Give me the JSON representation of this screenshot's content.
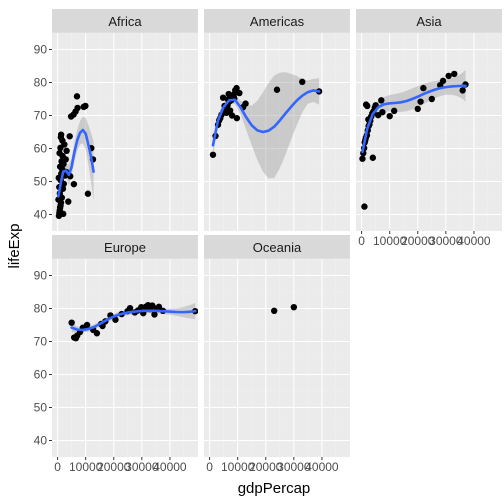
{
  "chart_data": {
    "type": "scatter",
    "xlabel": "gdpPercap",
    "ylabel": "lifeExp",
    "x_ticks": [
      0,
      10000,
      20000,
      30000,
      40000
    ],
    "x_tick_labels": [
      "0",
      "10000",
      "20000",
      "30000",
      "40000"
    ],
    "y_ticks": [
      40,
      50,
      60,
      70,
      80,
      90
    ],
    "y_tick_labels": [
      "40",
      "50",
      "60",
      "70",
      "80",
      "90"
    ],
    "xlim": [
      -2000,
      50000
    ],
    "ylim": [
      35,
      95
    ],
    "grid": true,
    "colors": {
      "panel_bg": "#ebebeb",
      "strip_bg": "#d9d9d9",
      "grid_major": "#ffffff",
      "grid_minor": "#f2f2f2",
      "point": "#000000",
      "smooth_line": "#3366ff",
      "ribbon": "#999999"
    },
    "facets": [
      {
        "name": "Africa",
        "points": [
          [
            470,
            39.6
          ],
          [
            620,
            40.5
          ],
          [
            760,
            41.2
          ],
          [
            900,
            42.1
          ],
          [
            1050,
            42.8
          ],
          [
            1200,
            43.6
          ],
          [
            300,
            44.5
          ],
          [
            1500,
            45.1
          ],
          [
            800,
            46.4
          ],
          [
            1900,
            47.8
          ],
          [
            600,
            48.3
          ],
          [
            2200,
            49.3
          ],
          [
            1100,
            50.4
          ],
          [
            400,
            51.1
          ],
          [
            2600,
            51.8
          ],
          [
            1300,
            52.4
          ],
          [
            3000,
            52.9
          ],
          [
            1600,
            53.8
          ],
          [
            900,
            54.5
          ],
          [
            2100,
            55.3
          ],
          [
            1400,
            56.1
          ],
          [
            2900,
            56.7
          ],
          [
            1800,
            57.7
          ],
          [
            700,
            58.6
          ],
          [
            3200,
            59.3
          ],
          [
            1000,
            60.2
          ],
          [
            2400,
            61.2
          ],
          [
            1700,
            62.4
          ],
          [
            1150,
            63.4
          ],
          [
            1250,
            64.2
          ],
          [
            3500,
            52.5
          ],
          [
            4500,
            51.6
          ],
          [
            5800,
            49.2
          ],
          [
            4300,
            63.7
          ],
          [
            4800,
            69.7
          ],
          [
            5700,
            70.3
          ],
          [
            6400,
            71.2
          ],
          [
            7100,
            72.3
          ],
          [
            6900,
            75.8
          ],
          [
            9300,
            72.6
          ],
          [
            9900,
            72.9
          ],
          [
            10800,
            46.3
          ],
          [
            12600,
            56.7
          ],
          [
            12000,
            60.1
          ],
          [
            2000,
            40.2
          ],
          [
            3800,
            43.9
          ]
        ],
        "smooth": [
          [
            280,
            45.5
          ],
          [
            1000,
            49.0
          ],
          [
            2000,
            53.0
          ],
          [
            3000,
            53.3
          ],
          [
            4000,
            52.0
          ],
          [
            5000,
            54.5
          ],
          [
            6000,
            59.0
          ],
          [
            7000,
            62.5
          ],
          [
            8000,
            64.8
          ],
          [
            9000,
            65.6
          ],
          [
            10000,
            64.5
          ],
          [
            11000,
            61.0
          ],
          [
            12000,
            57.0
          ],
          [
            12800,
            53.0
          ]
        ],
        "ribbon_hw": [
          3.0,
          2.2,
          1.6,
          1.8,
          3.2,
          2.6,
          2.8,
          3.2,
          3.6,
          4.0,
          4.8,
          6.0,
          7.5,
          9.0
        ]
      },
      {
        "name": "Americas",
        "points": [
          [
            1200,
            58.1
          ],
          [
            2100,
            63.8
          ],
          [
            3000,
            67.2
          ],
          [
            3800,
            69.2
          ],
          [
            4200,
            70.2
          ],
          [
            5000,
            71.3
          ],
          [
            5600,
            72.1
          ],
          [
            6000,
            70.8
          ],
          [
            6400,
            73.1
          ],
          [
            7100,
            74.3
          ],
          [
            7800,
            74.7
          ],
          [
            8300,
            75.6
          ],
          [
            8600,
            76.3
          ],
          [
            9100,
            77.6
          ],
          [
            9600,
            78.3
          ],
          [
            10600,
            76.8
          ],
          [
            11900,
            72.5
          ],
          [
            8800,
            75.2
          ],
          [
            8000,
            70.0
          ],
          [
            6600,
            74.8
          ],
          [
            9700,
            69.2
          ],
          [
            12800,
            73.6
          ],
          [
            4800,
            75.4
          ],
          [
            24000,
            77.8
          ],
          [
            33000,
            80.2
          ],
          [
            39000,
            77.3
          ],
          [
            7300,
            71.5
          ],
          [
            5300,
            72.9
          ],
          [
            3400,
            68.5
          ],
          [
            6800,
            76.5
          ]
        ],
        "smooth": [
          [
            1200,
            61.0
          ],
          [
            3000,
            68.5
          ],
          [
            5000,
            72.6
          ],
          [
            7000,
            74.6
          ],
          [
            9000,
            74.8
          ],
          [
            11000,
            72.5
          ],
          [
            13000,
            69.5
          ],
          [
            15000,
            67.0
          ],
          [
            17000,
            65.5
          ],
          [
            19000,
            65.0
          ],
          [
            21000,
            65.4
          ],
          [
            23000,
            66.6
          ],
          [
            25000,
            68.5
          ],
          [
            27000,
            70.6
          ],
          [
            29000,
            72.6
          ],
          [
            31000,
            74.5
          ],
          [
            33000,
            76.0
          ],
          [
            35000,
            77.1
          ],
          [
            37000,
            77.6
          ],
          [
            39000,
            77.3
          ]
        ],
        "ribbon_hw": [
          3.0,
          1.5,
          1.2,
          1.2,
          1.3,
          2.0,
          3.8,
          6.0,
          9.0,
          12.0,
          14.5,
          15.5,
          14.5,
          12.5,
          10.0,
          7.5,
          5.0,
          3.5,
          3.5,
          4.0
        ]
      },
      {
        "name": "Asia",
        "points": [
          [
            1000,
            42.4
          ],
          [
            300,
            56.9
          ],
          [
            600,
            58.6
          ],
          [
            900,
            60.1
          ],
          [
            1100,
            61.8
          ],
          [
            1300,
            62.5
          ],
          [
            1500,
            63.2
          ],
          [
            1900,
            64.0
          ],
          [
            2200,
            65.5
          ],
          [
            2500,
            66.8
          ],
          [
            2800,
            67.3
          ],
          [
            3100,
            68.4
          ],
          [
            3400,
            69.7
          ],
          [
            3800,
            70.6
          ],
          [
            4200,
            71.2
          ],
          [
            4700,
            72.4
          ],
          [
            2000,
            72.9
          ],
          [
            5000,
            73.1
          ],
          [
            5900,
            70.1
          ],
          [
            7400,
            71.0
          ],
          [
            10000,
            69.8
          ],
          [
            11600,
            71.4
          ],
          [
            20000,
            72.0
          ],
          [
            21000,
            74.2
          ],
          [
            22000,
            78.3
          ],
          [
            25000,
            75.0
          ],
          [
            28000,
            79.2
          ],
          [
            29000,
            80.5
          ],
          [
            31000,
            82.0
          ],
          [
            33000,
            82.6
          ],
          [
            36000,
            77.6
          ],
          [
            37000,
            79.4
          ],
          [
            4000,
            57.2
          ],
          [
            1600,
            73.3
          ],
          [
            7000,
            74.6
          ],
          [
            2400,
            68.8
          ]
        ],
        "smooth": [
          [
            300,
            59.0
          ],
          [
            2000,
            66.0
          ],
          [
            4000,
            70.5
          ],
          [
            6000,
            72.6
          ],
          [
            8000,
            73.4
          ],
          [
            10000,
            73.7
          ],
          [
            12000,
            73.8
          ],
          [
            14000,
            74.0
          ],
          [
            16000,
            74.4
          ],
          [
            18000,
            75.0
          ],
          [
            20000,
            75.7
          ],
          [
            22000,
            76.5
          ],
          [
            24000,
            77.2
          ],
          [
            26000,
            77.8
          ],
          [
            28000,
            78.3
          ],
          [
            30000,
            78.6
          ],
          [
            32000,
            78.8
          ],
          [
            34000,
            78.9
          ],
          [
            36000,
            79.0
          ],
          [
            37000,
            79.0
          ]
        ],
        "ribbon_hw": [
          4.5,
          2.6,
          2.0,
          2.0,
          2.2,
          2.5,
          2.7,
          2.9,
          3.1,
          3.2,
          3.2,
          3.1,
          2.9,
          2.6,
          2.4,
          2.3,
          2.5,
          3.0,
          4.0,
          4.8
        ]
      },
      {
        "name": "Europe",
        "points": [
          [
            5000,
            75.7
          ],
          [
            5900,
            71.2
          ],
          [
            7000,
            71.8
          ],
          [
            8000,
            72.9
          ],
          [
            9000,
            74.2
          ],
          [
            10500,
            75.0
          ],
          [
            12700,
            73.5
          ],
          [
            14000,
            72.5
          ],
          [
            15500,
            75.3
          ],
          [
            17000,
            76.1
          ],
          [
            18800,
            77.9
          ],
          [
            20600,
            76.6
          ],
          [
            22800,
            78.3
          ],
          [
            24900,
            79.2
          ],
          [
            25800,
            80.1
          ],
          [
            27500,
            78.8
          ],
          [
            28600,
            79.4
          ],
          [
            29800,
            80.4
          ],
          [
            30500,
            78.6
          ],
          [
            31400,
            80.5
          ],
          [
            32200,
            81.0
          ],
          [
            33000,
            79.8
          ],
          [
            33700,
            80.9
          ],
          [
            34500,
            78.2
          ],
          [
            35300,
            80.0
          ],
          [
            36100,
            80.5
          ],
          [
            37500,
            79.3
          ],
          [
            49000,
            79.2
          ],
          [
            6500,
            71.0
          ],
          [
            16000,
            74.7
          ]
        ],
        "smooth": [
          [
            5000,
            74.2
          ],
          [
            7000,
            73.6
          ],
          [
            9000,
            73.5
          ],
          [
            11000,
            73.8
          ],
          [
            13000,
            74.4
          ],
          [
            15000,
            75.3
          ],
          [
            17000,
            76.3
          ],
          [
            19000,
            77.2
          ],
          [
            21000,
            77.9
          ],
          [
            23000,
            78.4
          ],
          [
            25000,
            78.8
          ],
          [
            27000,
            79.0
          ],
          [
            29000,
            79.2
          ],
          [
            31000,
            79.3
          ],
          [
            33000,
            79.3
          ],
          [
            35000,
            79.3
          ],
          [
            37000,
            79.2
          ],
          [
            39000,
            79.1
          ],
          [
            41000,
            79.0
          ],
          [
            43000,
            78.9
          ],
          [
            45000,
            78.9
          ],
          [
            47000,
            79.0
          ],
          [
            49000,
            79.2
          ]
        ],
        "ribbon_hw": [
          1.4,
          1.0,
          0.8,
          0.8,
          0.8,
          0.8,
          0.8,
          0.8,
          0.8,
          0.8,
          0.8,
          0.8,
          0.7,
          0.7,
          0.7,
          0.7,
          0.8,
          0.9,
          1.0,
          1.2,
          1.6,
          2.0,
          2.5
        ]
      },
      {
        "name": "Oceania",
        "points": [
          [
            23000,
            79.3
          ],
          [
            30000,
            80.4
          ]
        ],
        "smooth": [],
        "ribbon_hw": []
      }
    ]
  }
}
